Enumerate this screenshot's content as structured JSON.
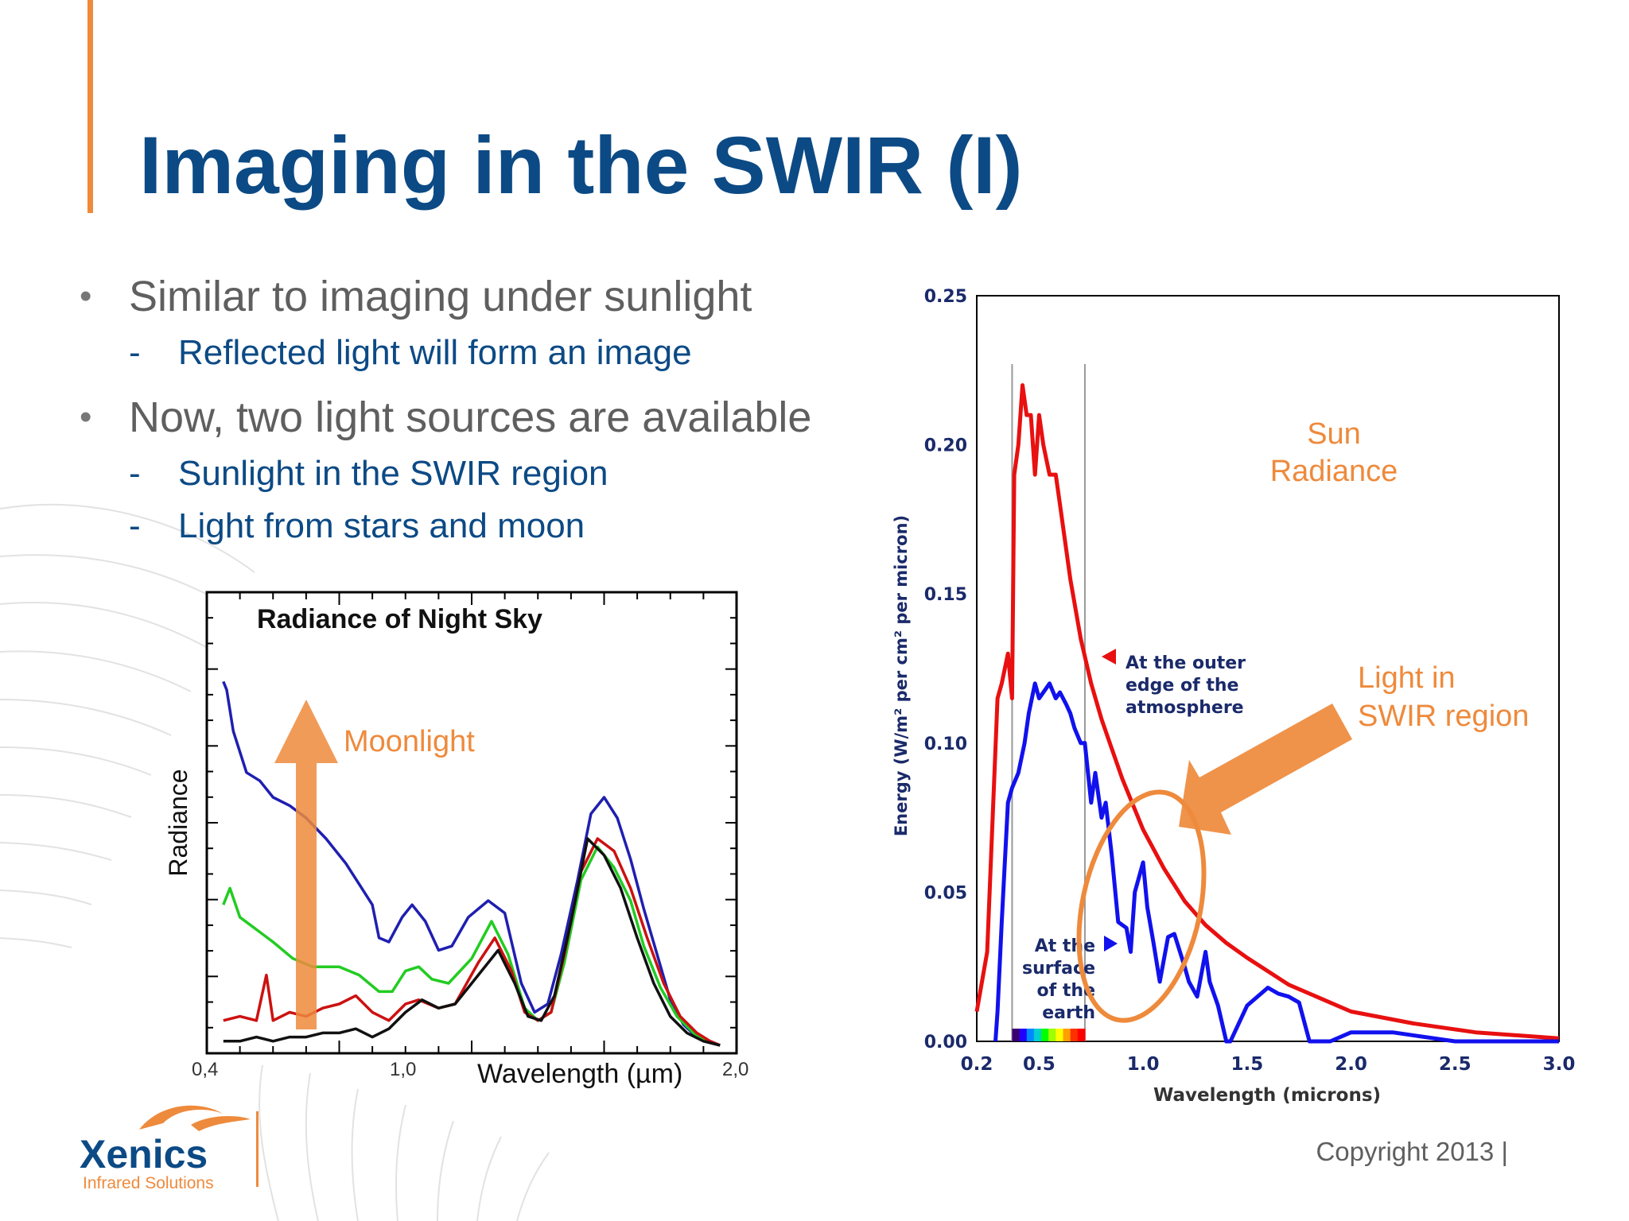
{
  "slide": {
    "title": "Imaging in the SWIR (I)",
    "bullets": [
      {
        "text": "Similar to imaging under sunlight",
        "sub": [
          "Reflected light will form an image"
        ]
      },
      {
        "text": "Now, two light sources are available",
        "sub": [
          "Sunlight in the SWIR region",
          "Light from stars and moon"
        ]
      }
    ],
    "copyright": "Copyright 2013 |",
    "logo": {
      "name": "Xenics",
      "subtitle": "Infrared Solutions"
    },
    "colors": {
      "title": "#0c4a85",
      "accent": "#ee8a3c",
      "bullet": "#5f5f5f"
    }
  },
  "chart_data": [
    {
      "type": "line",
      "title": "Radiance of Night Sky",
      "xlabel": "Wavelength (µm)",
      "ylabel": "Radiance",
      "x_ticklabels": [
        "0,4",
        "1,0",
        "2,0"
      ],
      "annotation": "Moonlight",
      "series": [
        {
          "color": "#1f1fb0",
          "x": [
            0.45,
            0.46,
            0.48,
            0.52,
            0.56,
            0.6,
            0.65,
            0.7,
            0.76,
            0.82,
            0.86,
            0.9,
            0.92,
            0.95,
            0.99,
            1.02,
            1.06,
            1.1,
            1.14,
            1.19,
            1.25,
            1.3,
            1.35,
            1.39,
            1.43,
            1.47,
            1.52,
            1.56,
            1.6,
            1.64,
            1.68,
            1.72,
            1.76,
            1.8,
            1.84,
            1.88,
            1.92,
            1.95
          ],
          "y": [
            0.88,
            0.86,
            0.76,
            0.66,
            0.64,
            0.6,
            0.58,
            0.55,
            0.5,
            0.44,
            0.39,
            0.34,
            0.26,
            0.25,
            0.31,
            0.34,
            0.3,
            0.23,
            0.24,
            0.31,
            0.35,
            0.32,
            0.15,
            0.08,
            0.1,
            0.22,
            0.4,
            0.56,
            0.6,
            0.55,
            0.45,
            0.33,
            0.22,
            0.11,
            0.05,
            0.02,
            0.01,
            0.0
          ]
        },
        {
          "color": "#22cc22",
          "x": [
            0.45,
            0.47,
            0.5,
            0.55,
            0.6,
            0.66,
            0.72,
            0.8,
            0.86,
            0.92,
            0.96,
            1.0,
            1.04,
            1.08,
            1.13,
            1.2,
            1.26,
            1.31,
            1.36,
            1.4,
            1.44,
            1.48,
            1.53,
            1.58,
            1.63,
            1.68,
            1.72,
            1.77,
            1.82,
            1.87,
            1.91,
            1.95
          ],
          "y": [
            0.34,
            0.38,
            0.31,
            0.28,
            0.25,
            0.21,
            0.19,
            0.19,
            0.17,
            0.13,
            0.13,
            0.18,
            0.19,
            0.16,
            0.15,
            0.21,
            0.3,
            0.22,
            0.09,
            0.06,
            0.08,
            0.2,
            0.4,
            0.48,
            0.43,
            0.35,
            0.24,
            0.14,
            0.07,
            0.03,
            0.01,
            0.0
          ]
        },
        {
          "color": "#cc1111",
          "x": [
            0.45,
            0.5,
            0.55,
            0.58,
            0.6,
            0.65,
            0.7,
            0.75,
            0.8,
            0.85,
            0.9,
            0.95,
            1.0,
            1.04,
            1.1,
            1.15,
            1.22,
            1.27,
            1.32,
            1.36,
            1.4,
            1.44,
            1.48,
            1.53,
            1.58,
            1.63,
            1.68,
            1.73,
            1.78,
            1.83,
            1.88,
            1.92,
            1.95
          ],
          "y": [
            0.06,
            0.07,
            0.06,
            0.17,
            0.06,
            0.08,
            0.07,
            0.09,
            0.1,
            0.12,
            0.08,
            0.06,
            0.1,
            0.11,
            0.09,
            0.1,
            0.2,
            0.26,
            0.18,
            0.08,
            0.06,
            0.08,
            0.22,
            0.42,
            0.5,
            0.47,
            0.38,
            0.26,
            0.15,
            0.07,
            0.03,
            0.01,
            0.0
          ]
        },
        {
          "color": "#111111",
          "x": [
            0.45,
            0.5,
            0.55,
            0.6,
            0.65,
            0.7,
            0.75,
            0.8,
            0.85,
            0.9,
            0.95,
            1.0,
            1.05,
            1.1,
            1.15,
            1.22,
            1.28,
            1.33,
            1.37,
            1.41,
            1.45,
            1.5,
            1.55,
            1.6,
            1.65,
            1.7,
            1.75,
            1.8,
            1.85,
            1.9,
            1.95
          ],
          "y": [
            0.01,
            0.01,
            0.02,
            0.01,
            0.02,
            0.02,
            0.03,
            0.03,
            0.04,
            0.02,
            0.04,
            0.08,
            0.11,
            0.09,
            0.1,
            0.17,
            0.23,
            0.15,
            0.07,
            0.06,
            0.12,
            0.3,
            0.5,
            0.46,
            0.38,
            0.26,
            0.15,
            0.07,
            0.03,
            0.01,
            0.0
          ]
        }
      ]
    },
    {
      "type": "line",
      "xlabel": "Wavelength (microns)",
      "ylabel": "Energy (W/m² per cm² per micron)",
      "xlim": [
        0.2,
        3.0
      ],
      "ylim": [
        0.0,
        0.25
      ],
      "x_ticks": [
        "0.2",
        "0.5",
        "1.0",
        "1.5",
        "2.0",
        "2.5",
        "3.0"
      ],
      "y_ticks": [
        "0.00",
        "0.05",
        "0.10",
        "0.15",
        "0.20",
        "0.25"
      ],
      "labels": {
        "sun": [
          "Sun",
          "Radiance"
        ],
        "swir": [
          "Light in",
          "SWIR region"
        ],
        "outer": [
          "At the outer",
          "edge of the",
          "atmosphere"
        ],
        "surface": [
          "At the",
          "surface",
          "of the",
          "earth"
        ]
      },
      "series": [
        {
          "color": "#e81010",
          "x": [
            0.2,
            0.25,
            0.3,
            0.32,
            0.35,
            0.37,
            0.38,
            0.4,
            0.42,
            0.44,
            0.46,
            0.48,
            0.5,
            0.52,
            0.55,
            0.58,
            0.6,
            0.65,
            0.7,
            0.75,
            0.8,
            0.85,
            0.9,
            1.0,
            1.1,
            1.2,
            1.3,
            1.4,
            1.5,
            1.7,
            2.0,
            2.3,
            2.6,
            3.0
          ],
          "y": [
            0.01,
            0.03,
            0.115,
            0.12,
            0.13,
            0.115,
            0.19,
            0.2,
            0.22,
            0.21,
            0.21,
            0.19,
            0.21,
            0.2,
            0.19,
            0.19,
            0.18,
            0.155,
            0.135,
            0.12,
            0.108,
            0.098,
            0.088,
            0.071,
            0.058,
            0.047,
            0.039,
            0.033,
            0.028,
            0.019,
            0.01,
            0.006,
            0.003,
            0.001
          ]
        },
        {
          "color": "#1111ee",
          "x": [
            0.29,
            0.3,
            0.32,
            0.35,
            0.37,
            0.4,
            0.43,
            0.45,
            0.48,
            0.5,
            0.53,
            0.55,
            0.58,
            0.6,
            0.63,
            0.65,
            0.67,
            0.7,
            0.72,
            0.75,
            0.77,
            0.8,
            0.82,
            0.85,
            0.88,
            0.92,
            0.94,
            0.96,
            1.0,
            1.02,
            1.05,
            1.08,
            1.12,
            1.15,
            1.2,
            1.22,
            1.26,
            1.3,
            1.32,
            1.36,
            1.4,
            1.42,
            1.5,
            1.6,
            1.65,
            1.7,
            1.75,
            1.8,
            1.9,
            2.0,
            2.2,
            2.5,
            3.0
          ],
          "y": [
            0.0,
            0.01,
            0.04,
            0.08,
            0.085,
            0.09,
            0.1,
            0.11,
            0.12,
            0.115,
            0.118,
            0.12,
            0.115,
            0.117,
            0.113,
            0.11,
            0.105,
            0.1,
            0.1,
            0.08,
            0.09,
            0.075,
            0.08,
            0.062,
            0.04,
            0.038,
            0.03,
            0.05,
            0.06,
            0.045,
            0.033,
            0.02,
            0.035,
            0.036,
            0.025,
            0.02,
            0.015,
            0.03,
            0.02,
            0.012,
            0.0,
            0.0,
            0.012,
            0.018,
            0.016,
            0.015,
            0.013,
            0.0,
            0.0,
            0.003,
            0.003,
            0.0,
            0.0
          ]
        }
      ]
    }
  ]
}
